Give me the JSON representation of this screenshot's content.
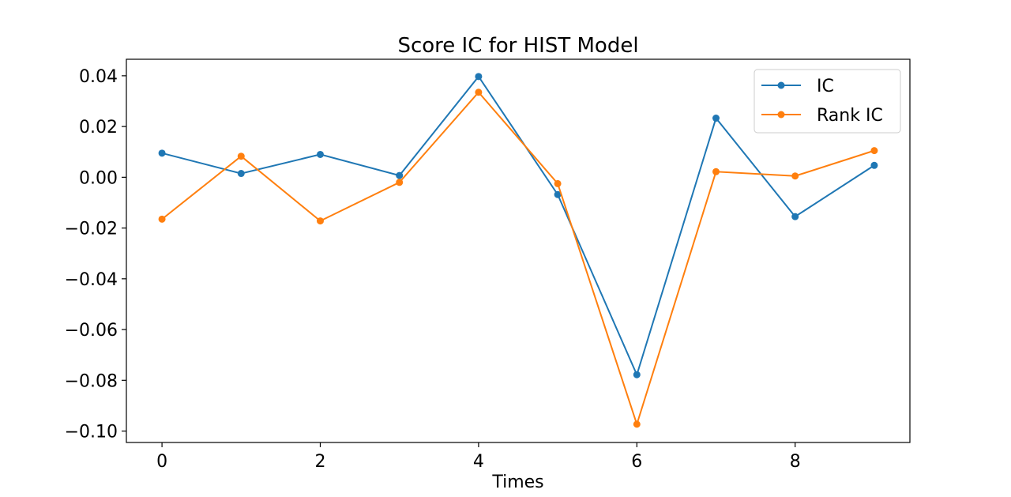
{
  "chart_data": {
    "type": "line",
    "title": "Score IC for HIST Model",
    "xlabel": "Times",
    "ylabel": "",
    "x": [
      0,
      1,
      2,
      3,
      4,
      5,
      6,
      7,
      8,
      9
    ],
    "xlim": [
      -0.45,
      9.45
    ],
    "ylim": [
      -0.1045,
      0.0465
    ],
    "x_ticks": [
      0,
      2,
      4,
      6,
      8
    ],
    "x_tick_labels": [
      "0",
      "2",
      "4",
      "6",
      "8"
    ],
    "y_ticks": [
      0.04,
      0.02,
      0.0,
      -0.02,
      -0.04,
      -0.06,
      -0.08,
      -0.1
    ],
    "y_tick_labels": [
      "0.04",
      "0.02",
      "0.00",
      "−0.02",
      "−0.04",
      "−0.06",
      "−0.08",
      "−0.10"
    ],
    "grid": false,
    "legend_position": "top-right",
    "series": [
      {
        "name": "IC",
        "color": "#1f77b4",
        "marker": "circle",
        "values": [
          0.0095,
          0.0015,
          0.009,
          0.0007,
          0.0397,
          -0.0068,
          -0.0778,
          0.0233,
          -0.0155,
          0.0047
        ]
      },
      {
        "name": "Rank IC",
        "color": "#ff7f0e",
        "marker": "circle",
        "values": [
          -0.0165,
          0.0083,
          -0.0172,
          -0.002,
          0.0335,
          -0.0025,
          -0.0973,
          0.0022,
          0.0005,
          0.0105
        ]
      }
    ]
  }
}
